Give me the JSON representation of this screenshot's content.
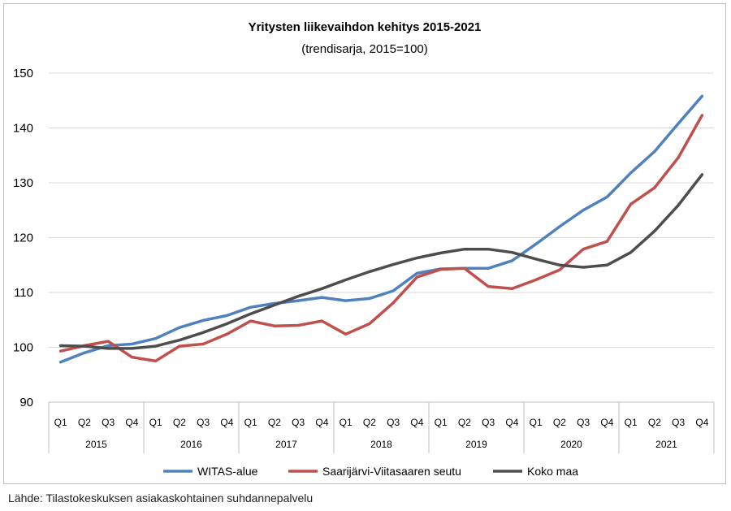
{
  "source": "Lähde: Tilastokeskuksen asiakaskohtainen suhdannepalvelu",
  "chart_data": {
    "type": "line",
    "title": "Yritysten liikevaihdon kehitys 2015-2021",
    "subtitle": "(trendisarja, 2015=100)",
    "quarters": [
      "Q1",
      "Q2",
      "Q3",
      "Q4"
    ],
    "years": [
      "2015",
      "2016",
      "2017",
      "2018",
      "2019",
      "2020",
      "2021"
    ],
    "yticks": [
      90,
      100,
      110,
      120,
      130,
      140,
      150
    ],
    "ylim": [
      90,
      150
    ],
    "grid": true,
    "legend_position": "bottom",
    "series": [
      {
        "name": "WITAS-alue",
        "color": "#4f81bd",
        "values": [
          97.3,
          99.0,
          100.3,
          100.6,
          101.6,
          103.6,
          104.9,
          105.8,
          107.3,
          108.0,
          108.5,
          109.1,
          108.5,
          108.9,
          110.3,
          113.5,
          114.3,
          114.4,
          114.4,
          115.8,
          118.8,
          122.0,
          125.0,
          127.4,
          131.8,
          135.7,
          140.8,
          145.8
        ]
      },
      {
        "name": "Saarijärvi-Viitasaaren seutu",
        "color": "#c0504d",
        "values": [
          99.3,
          100.3,
          101.1,
          98.2,
          97.5,
          100.2,
          100.6,
          102.4,
          104.8,
          103.9,
          104.0,
          104.8,
          102.4,
          104.3,
          108.1,
          112.8,
          114.2,
          114.4,
          111.1,
          110.7,
          112.3,
          114.1,
          117.9,
          119.3,
          126.1,
          129.1,
          134.6,
          142.3
        ]
      },
      {
        "name": "Koko maa",
        "color": "#4d4d4d",
        "values": [
          100.3,
          100.2,
          99.8,
          99.8,
          100.2,
          101.3,
          102.7,
          104.3,
          106.1,
          107.7,
          109.3,
          110.7,
          112.3,
          113.8,
          115.1,
          116.3,
          117.2,
          117.9,
          117.9,
          117.3,
          116.1,
          115.0,
          114.6,
          115.0,
          117.3,
          121.2,
          125.9,
          131.5
        ]
      }
    ]
  }
}
